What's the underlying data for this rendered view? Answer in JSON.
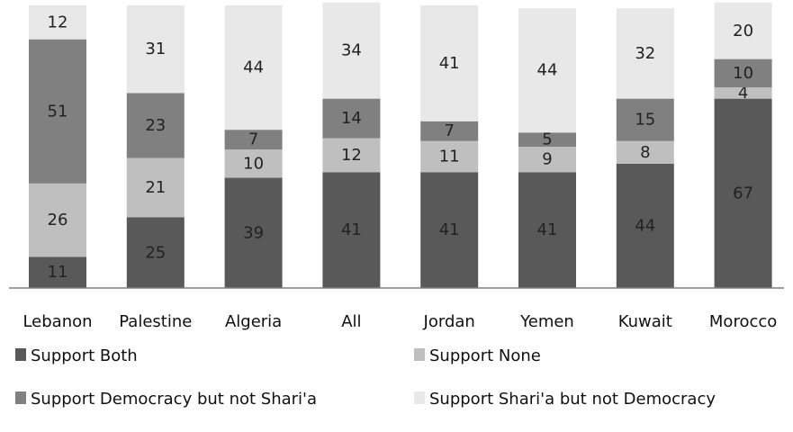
{
  "chart_data": {
    "type": "bar",
    "stacked": true,
    "categories": [
      "Lebanon",
      "Palestine",
      "Algeria",
      "All",
      "Jordan",
      "Yemen",
      "Kuwait",
      "Morocco"
    ],
    "series": [
      {
        "name": "Support Both",
        "color": "#595959",
        "values": [
          11,
          25,
          39,
          41,
          41,
          41,
          44,
          67
        ]
      },
      {
        "name": "Support None",
        "color": "#bfbfbf",
        "values": [
          26,
          21,
          10,
          12,
          11,
          9,
          8,
          4
        ]
      },
      {
        "name": "Support Democracy but not Shari'a",
        "color": "#808080",
        "values": [
          51,
          23,
          7,
          14,
          7,
          5,
          15,
          10
        ]
      },
      {
        "name": "Support Shari'a but not Democracy",
        "color": "#e8e8e8",
        "values": [
          12,
          31,
          44,
          34,
          41,
          44,
          32,
          20
        ]
      }
    ],
    "ylim": [
      0,
      100
    ],
    "grid": false,
    "legend_position": "bottom",
    "data_labels": true
  }
}
